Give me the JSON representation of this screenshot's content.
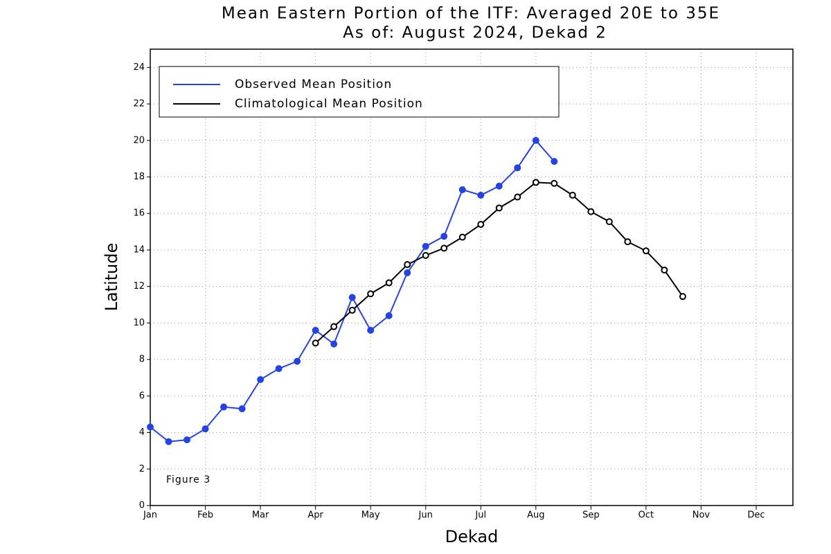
{
  "chart_data": {
    "type": "line",
    "title": "Mean Eastern Portion of the ITF: Averaged 20E to 35E",
    "subtitle": "As of: August 2024, Dekad 2",
    "x_label": "Dekad",
    "y_label": "Latitude",
    "annotation": "Figure 3",
    "x": [
      0,
      1,
      2,
      3,
      4,
      5,
      6,
      7,
      8,
      9,
      10,
      11,
      12,
      13,
      14,
      15,
      16,
      17,
      18,
      19,
      20,
      21,
      22,
      23,
      24,
      25,
      26,
      27,
      28,
      29
    ],
    "series": [
      {
        "name": "Observed Mean Position",
        "color": "#2443e6",
        "marker": "filled",
        "values": [
          4.3,
          3.5,
          3.6,
          4.2,
          5.4,
          5.3,
          6.9,
          7.5,
          7.9,
          9.6,
          8.85,
          11.4,
          9.6,
          10.4,
          12.75,
          14.2,
          14.75,
          17.3,
          17.0,
          17.5,
          18.5,
          20.0,
          18.85,
          null,
          null,
          null,
          null,
          null,
          null,
          null
        ]
      },
      {
        "name": "Climatological Mean Position",
        "color": "#000000",
        "marker": "open",
        "values": [
          null,
          null,
          null,
          null,
          null,
          null,
          null,
          null,
          null,
          8.9,
          9.8,
          10.7,
          11.6,
          12.2,
          13.2,
          13.7,
          14.1,
          14.7,
          15.4,
          16.3,
          16.9,
          17.7,
          17.65,
          17.0,
          16.1,
          15.55,
          14.45,
          13.95,
          12.9,
          11.45
        ]
      }
    ],
    "xlim": [
      0,
      35
    ],
    "xticks": [
      {
        "value": 0,
        "label": "Jan"
      },
      {
        "value": 3,
        "label": "Feb"
      },
      {
        "value": 6,
        "label": "Mar"
      },
      {
        "value": 9,
        "label": "Apr"
      },
      {
        "value": 12,
        "label": "May"
      },
      {
        "value": 15,
        "label": "Jun"
      },
      {
        "value": 18,
        "label": "Jul"
      },
      {
        "value": 21,
        "label": "Aug"
      },
      {
        "value": 24,
        "label": "Sep"
      },
      {
        "value": 27,
        "label": "Oct"
      },
      {
        "value": 30,
        "label": "Nov"
      },
      {
        "value": 33,
        "label": "Dec"
      }
    ],
    "ylim": [
      0,
      25
    ],
    "yticks": [
      0,
      2,
      4,
      6,
      8,
      10,
      12,
      14,
      16,
      18,
      20,
      22,
      24
    ],
    "grid": true,
    "legend": "upper left"
  }
}
